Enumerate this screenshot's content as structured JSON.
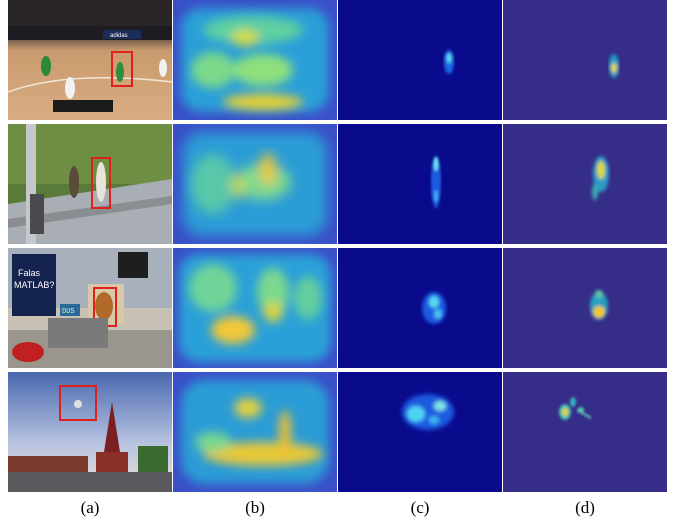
{
  "figure": {
    "panel_labels": [
      "(a)",
      "(b)",
      "(c)",
      "(d)"
    ],
    "rows": [
      {
        "scene": "basketball",
        "overlay_text": [
          "adidas"
        ]
      },
      {
        "scene": "pedestrian",
        "overlay_text": []
      },
      {
        "scene": "desk-with-toy",
        "overlay_text": [
          "Falas",
          "MATLAB?",
          "DUS"
        ]
      },
      {
        "scene": "moscow-motocross",
        "overlay_text": []
      }
    ],
    "colors": {
      "target_box": "#e0201c",
      "map_background_b": "#3a50c8",
      "map_background_c": "#0a0a8c",
      "map_background_d": "#362d88",
      "separator": "#ffffff"
    }
  }
}
